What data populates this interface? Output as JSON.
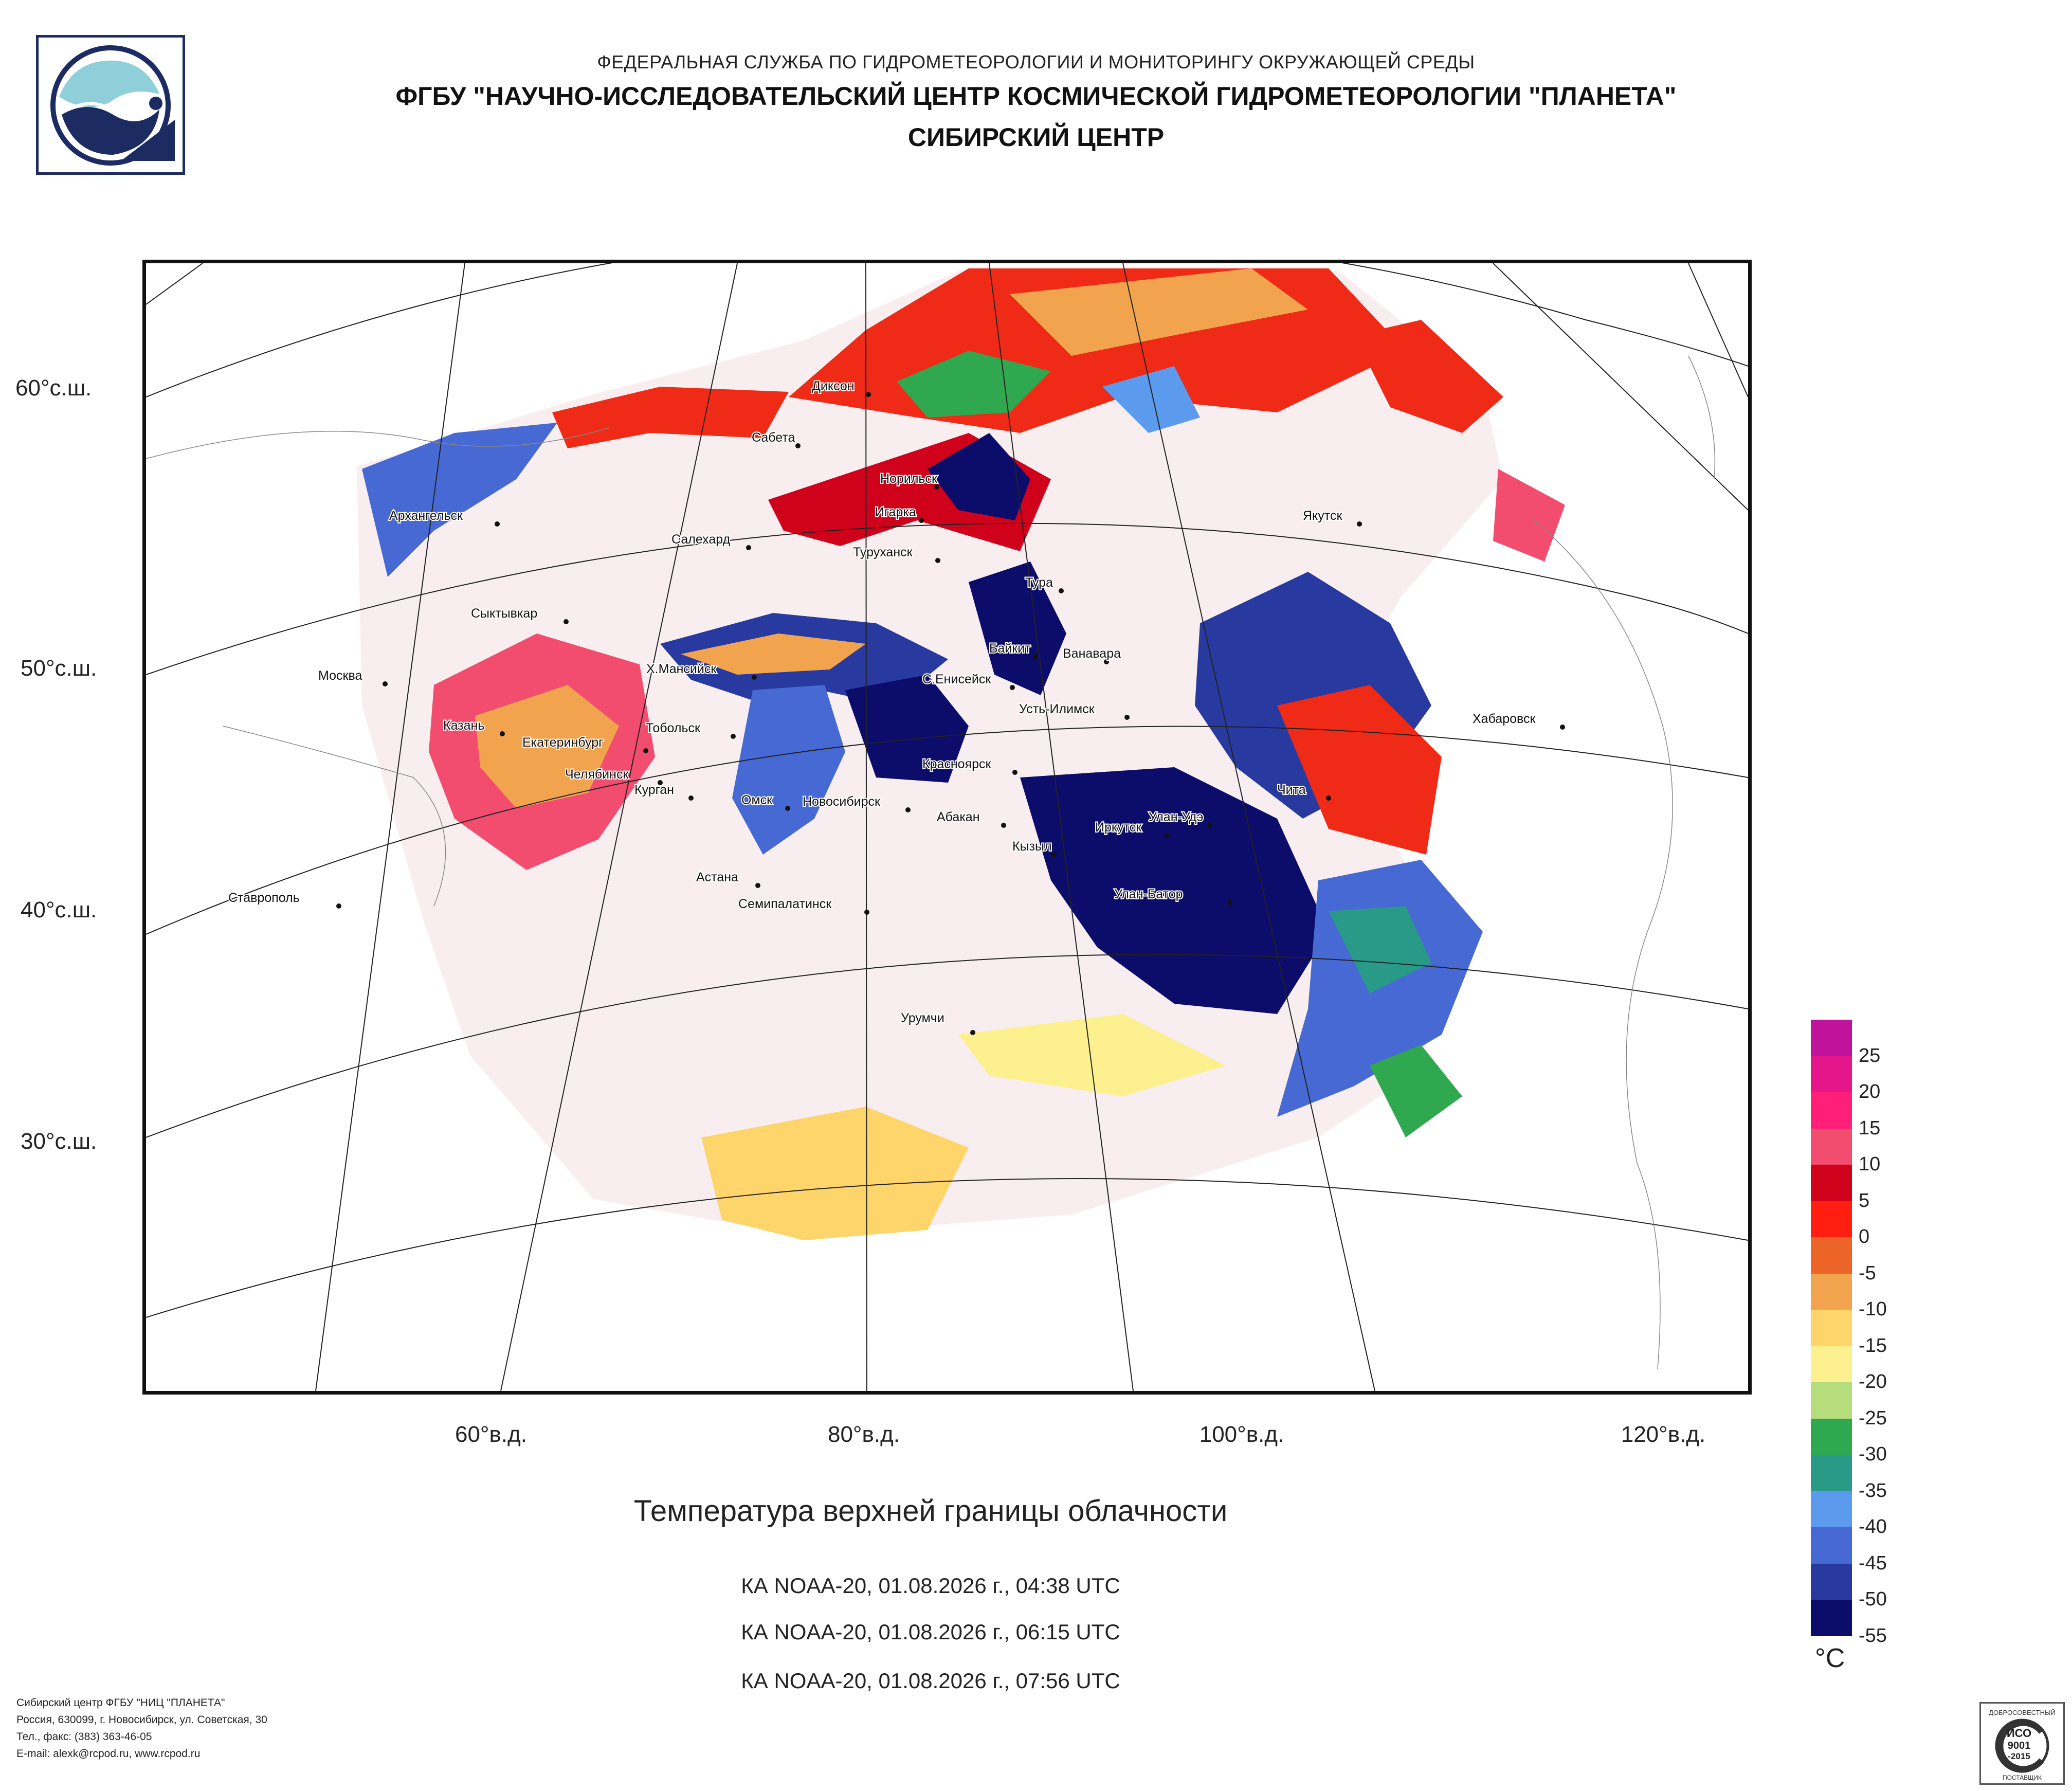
{
  "header": {
    "line1": "ФЕДЕРАЛЬНАЯ СЛУЖБА ПО ГИДРОМЕТЕОРОЛОГИИ И МОНИТОРИНГУ ОКРУЖАЮЩЕЙ СРЕДЫ",
    "line2": "ФГБУ \"НАУЧНО-ИССЛЕДОВАТЕЛЬСКИЙ ЦЕНТР КОСМИЧЕСКОЙ ГИДРОМЕТЕОРОЛОГИИ \"ПЛАНЕТА\"",
    "line3": "СИБИРСКИЙ ЦЕНТР"
  },
  "map": {
    "lat_labels": [
      "60°с.ш.",
      "50°с.ш.",
      "40°с.ш.",
      "30°с.ш."
    ],
    "lon_labels": [
      "60°в.д.",
      "80°в.д.",
      "100°в.д.",
      "120°в.д."
    ],
    "cities": [
      "Диксон",
      "Сабета",
      "Норильск",
      "Игарка",
      "Салехард",
      "Туруханск",
      "Архангельск",
      "Якутск",
      "Тура",
      "Сыктывкар",
      "Байкит",
      "Ванавара",
      "Москва",
      "Х.Мансийск",
      "С.Енисейск",
      "Усть-Илимск",
      "Хабаровск",
      "Казань",
      "Тобольск",
      "Екатеринбург",
      "Красноярск",
      "Челябинск",
      "Чита",
      "Курган",
      "Омск",
      "Новосибирск",
      "Абакан",
      "Улан-Удэ",
      "Иркутск",
      "Кызыл",
      "Ставрополь",
      "Астана",
      "Улан-Батор",
      "Семипалатинск",
      "Урумчи"
    ]
  },
  "title": "Температура верхней границы облачности",
  "passes": [
    "КА NOAA-20, 01.08.2026 г., 04:38 UTC",
    "КА NOAA-20, 01.08.2026 г., 06:15 UTC",
    "КА NOAA-20, 01.08.2026 г., 07:56 UTC"
  ],
  "legend": {
    "unit": "°C",
    "labels": [
      "25",
      "20",
      "15",
      "10",
      "5",
      "0",
      "-5",
      "-10",
      "-15",
      "-20",
      "-25",
      "-30",
      "-35",
      "-40",
      "-45",
      "-50",
      "-55"
    ],
    "colors": [
      "#c0129a",
      "#e5168a",
      "#ff1f78",
      "#f24c6e",
      "#d0021b",
      "#ff1e10",
      "#ec6428",
      "#f2a34e",
      "#fed56b",
      "#fdf08e",
      "#b5dd7c",
      "#2fa84f",
      "#2a9a88",
      "#5b9aec",
      "#4669d3",
      "#2839a0",
      "#0c0c6a"
    ]
  },
  "footer": {
    "line1": "Сибирский центр ФГБУ \"НИЦ \"ПЛАНЕТА\"",
    "line2": "Россия, 630099, г. Новосибирск, ул. Советская, 30",
    "line3": "Тел., факс: (383) 363-46-05",
    "line4": "E-mail: alexk@rcpod.ru, www.rcpod.ru"
  },
  "cert": {
    "top": "ДОБРОСОВЕСТНЫЙ",
    "iso": "ИСО",
    "num": "9001",
    "year": "-2015",
    "bottom": "ПОСТАВЩИК"
  }
}
